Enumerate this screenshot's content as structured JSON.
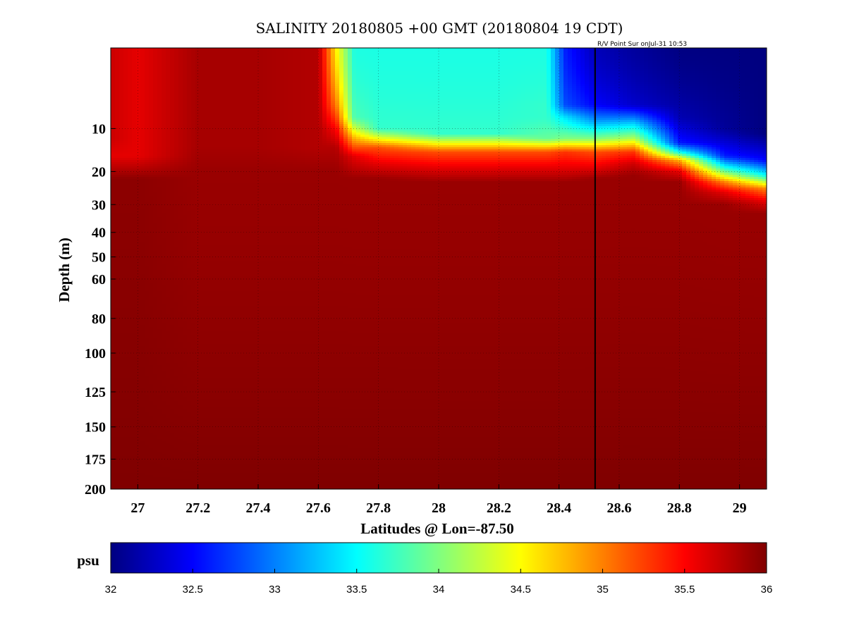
{
  "chart_data": {
    "type": "heatmap",
    "title": "SALINITY 20180805 +00 GMT (20180804 19 CDT)",
    "annotation": "R/V Point Sur onJul-31 10:53",
    "xlabel": "Latitudes @ Lon=-87.50",
    "ylabel": "Depth (m)",
    "xlim": [
      26.91,
      29.09
    ],
    "ylim": [
      200,
      0.5
    ],
    "y_scale": "sqrt",
    "y_reversed": true,
    "grid": true,
    "x_ticks": [
      27,
      27.2,
      27.4,
      27.6,
      27.8,
      28,
      28.2,
      28.4,
      28.6,
      28.8,
      29
    ],
    "x_tick_labels": [
      "27",
      "27.2",
      "27.4",
      "27.6",
      "27.8",
      "28",
      "28.2",
      "28.4",
      "28.6",
      "28.8",
      "29"
    ],
    "y_ticks": [
      10,
      20,
      30,
      40,
      50,
      60,
      80,
      100,
      125,
      150,
      175,
      200
    ],
    "y_tick_labels": [
      "10",
      "20",
      "30",
      "40",
      "50",
      "60",
      "80",
      "100",
      "125",
      "150",
      "175",
      "200"
    ],
    "vertical_line_x": 28.52,
    "colorbar": {
      "label": "psu",
      "range": [
        32,
        36
      ],
      "colormap": "jet",
      "ticks": [
        32,
        32.5,
        33,
        33.5,
        34,
        34.5,
        35,
        35.5,
        36
      ],
      "tick_labels": [
        "32",
        "32.5",
        "33",
        "33.5",
        "34",
        "34.5",
        "35",
        "35.5",
        "36"
      ]
    },
    "profiles": [
      {
        "lat": 26.91,
        "depths": [
          0,
          12,
          16,
          22,
          200
        ],
        "values": [
          35.7,
          35.7,
          35.6,
          35.95,
          36
        ]
      },
      {
        "lat": 27.0,
        "depths": [
          0,
          12,
          16,
          22,
          200
        ],
        "values": [
          35.6,
          35.6,
          35.6,
          35.95,
          36
        ]
      },
      {
        "lat": 27.2,
        "depths": [
          0,
          14,
          20,
          200
        ],
        "values": [
          35.85,
          35.85,
          35.9,
          36
        ]
      },
      {
        "lat": 27.4,
        "depths": [
          0,
          14,
          20,
          200
        ],
        "values": [
          35.85,
          35.85,
          35.9,
          36
        ]
      },
      {
        "lat": 27.6,
        "depths": [
          0,
          14,
          20,
          200
        ],
        "values": [
          35.8,
          35.8,
          35.9,
          36
        ]
      },
      {
        "lat": 27.66,
        "depths": [
          0,
          6,
          10,
          14,
          20,
          200
        ],
        "values": [
          34.5,
          35.0,
          35.5,
          35.8,
          35.9,
          36
        ]
      },
      {
        "lat": 27.72,
        "depths": [
          0,
          8,
          12,
          16,
          22,
          200
        ],
        "values": [
          33.6,
          33.8,
          34.8,
          35.6,
          35.9,
          36
        ]
      },
      {
        "lat": 27.8,
        "depths": [
          0,
          10,
          14,
          18,
          22,
          200
        ],
        "values": [
          33.6,
          33.7,
          35.2,
          35.6,
          35.9,
          36
        ]
      },
      {
        "lat": 28.0,
        "depths": [
          0,
          11,
          15,
          19,
          23,
          200
        ],
        "values": [
          33.6,
          33.7,
          35.2,
          35.6,
          35.9,
          36
        ]
      },
      {
        "lat": 28.2,
        "depths": [
          0,
          11,
          15,
          19,
          23,
          200
        ],
        "values": [
          33.6,
          33.7,
          35.2,
          35.6,
          35.9,
          36
        ]
      },
      {
        "lat": 28.36,
        "depths": [
          0,
          6,
          8,
          12,
          15,
          19,
          23,
          200
        ],
        "values": [
          33.6,
          33.7,
          33.7,
          33.9,
          35.2,
          35.6,
          35.9,
          36
        ]
      },
      {
        "lat": 28.42,
        "depths": [
          0,
          6,
          8,
          12,
          15,
          19,
          23,
          200
        ],
        "values": [
          32.6,
          32.8,
          33.4,
          34.0,
          35.3,
          35.6,
          35.9,
          36
        ]
      },
      {
        "lat": 28.52,
        "depths": [
          0,
          6,
          9,
          12,
          15,
          19,
          22,
          200
        ],
        "values": [
          32.2,
          32.5,
          33.2,
          34.0,
          35.2,
          35.6,
          35.9,
          36
        ]
      },
      {
        "lat": 28.65,
        "depths": [
          0,
          6,
          9,
          12,
          15,
          18,
          21,
          200
        ],
        "values": [
          32.1,
          32.3,
          33.3,
          34.2,
          35.3,
          35.7,
          35.9,
          36
        ]
      },
      {
        "lat": 28.8,
        "depths": [
          0,
          8,
          13,
          15,
          17,
          20,
          23,
          200
        ],
        "values": [
          32.0,
          32.2,
          32.6,
          33.5,
          34.8,
          35.6,
          35.9,
          36
        ]
      },
      {
        "lat": 28.95,
        "depths": [
          0,
          10,
          16,
          19,
          23,
          26,
          30,
          200
        ],
        "values": [
          32.0,
          32.1,
          32.6,
          33.6,
          35.0,
          35.6,
          35.9,
          36
        ]
      },
      {
        "lat": 29.09,
        "depths": [
          0,
          11,
          17,
          21,
          25,
          29,
          33,
          200
        ],
        "values": [
          32.0,
          32.0,
          32.5,
          33.5,
          35.0,
          35.6,
          35.9,
          36
        ]
      }
    ]
  }
}
